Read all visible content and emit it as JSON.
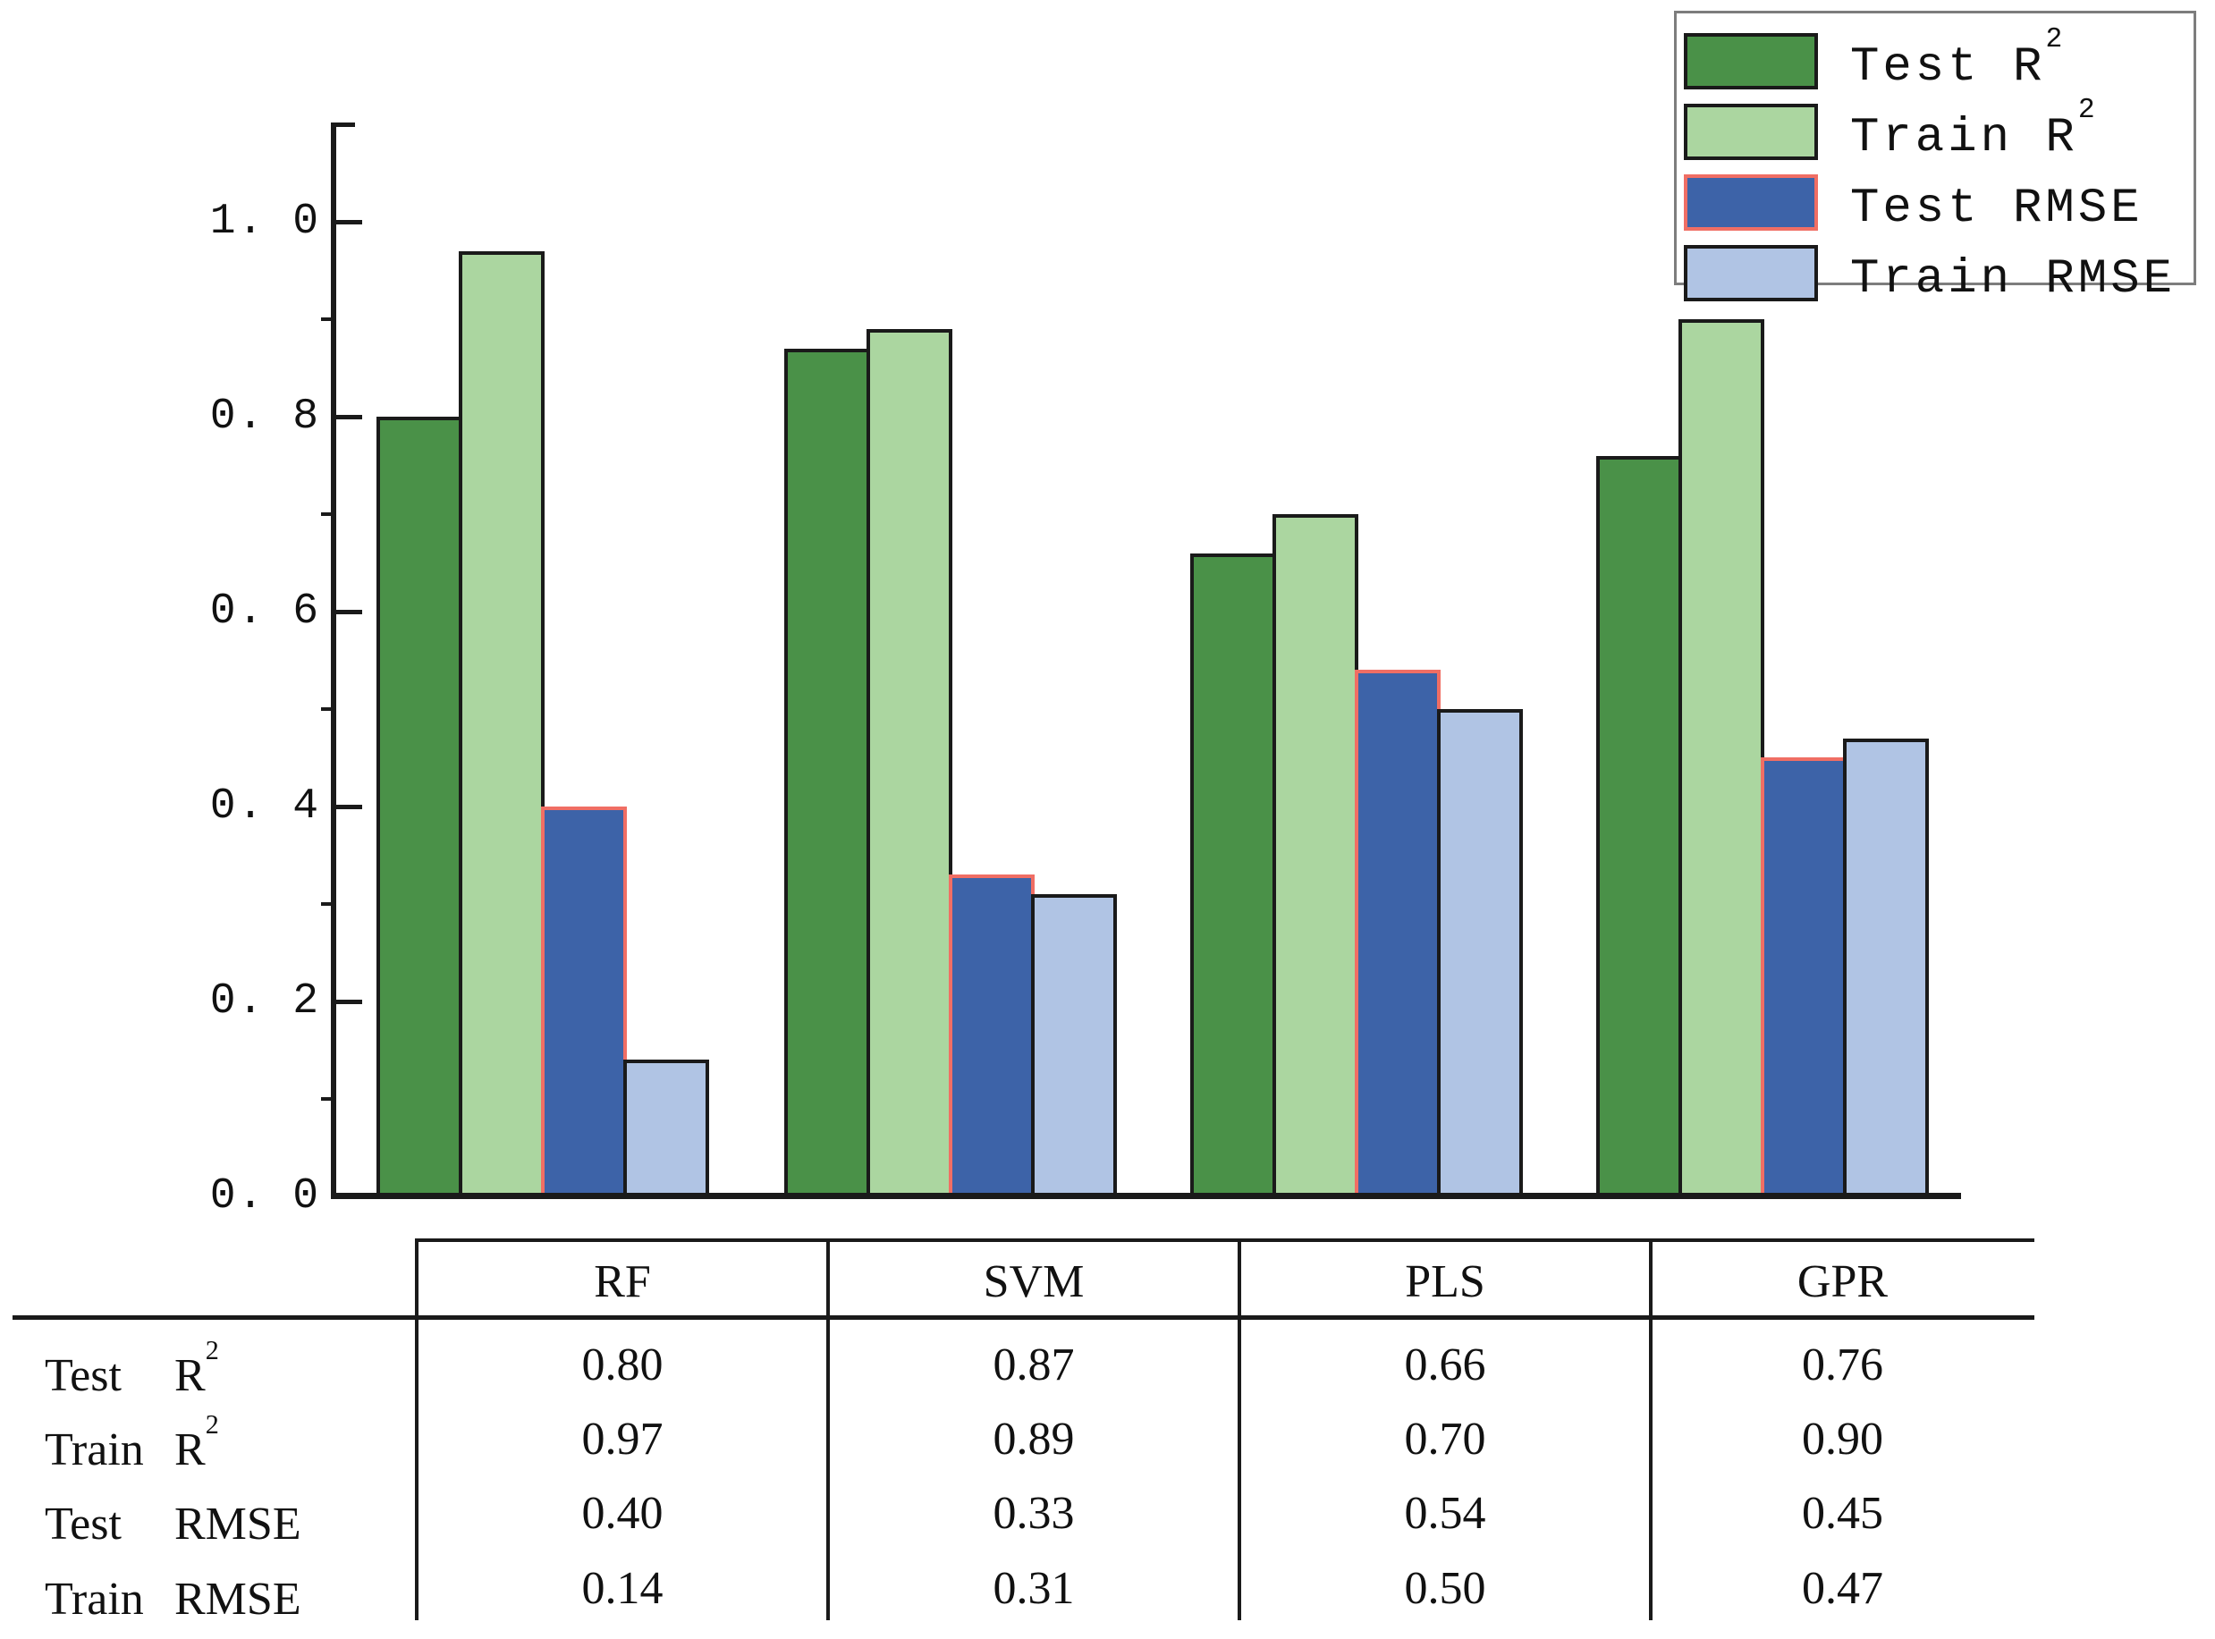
{
  "chart_data": {
    "type": "bar",
    "title": "",
    "xlabel": "",
    "ylabel": "",
    "categories": [
      "RF",
      "SVM",
      "PLS",
      "GPR"
    ],
    "series": [
      {
        "name": "Test R²",
        "values": [
          0.8,
          0.87,
          0.66,
          0.76
        ],
        "fill": "#4a9148",
        "edge": "#1a1a1a"
      },
      {
        "name": "Train R²",
        "values": [
          0.97,
          0.89,
          0.7,
          0.9
        ],
        "fill": "#abd6a0",
        "edge": "#1a1a1a"
      },
      {
        "name": "Test RMSE",
        "values": [
          0.4,
          0.33,
          0.54,
          0.45
        ],
        "fill": "#3d63a8",
        "edge": "#f06e64"
      },
      {
        "name": "Train RMSE",
        "values": [
          0.14,
          0.31,
          0.5,
          0.47
        ],
        "fill": "#b0c4e4",
        "edge": "#1a1a1a"
      }
    ],
    "ylim": [
      0,
      1.1
    ],
    "ytick_labels": [
      "0. 0",
      "0. 2",
      "0. 4",
      "0. 6",
      "0. 8",
      "1. 0"
    ],
    "ytick_values": [
      0.0,
      0.2,
      0.4,
      0.6,
      0.8,
      1.0
    ],
    "grid": false,
    "legend_position": "top-right",
    "pixels_per_unit": 1090
  },
  "legend": {
    "items": [
      {
        "text": "Test  R",
        "sup": "2"
      },
      {
        "text": "Train R",
        "sup": "2"
      },
      {
        "text": "Test  RMSE",
        "sup": ""
      },
      {
        "text": "Train RMSE",
        "sup": ""
      }
    ]
  },
  "table": {
    "columns": [
      "RF",
      "SVM",
      "PLS",
      "GPR"
    ],
    "rows": [
      {
        "word": "Test",
        "metric": "R",
        "sup": "2",
        "values": [
          "0.80",
          "0.87",
          "0.66",
          "0.76"
        ]
      },
      {
        "word": "Train",
        "metric": "R",
        "sup": "2",
        "values": [
          "0.97",
          "0.89",
          "0.70",
          "0.90"
        ]
      },
      {
        "word": "Test",
        "metric": "RMSE",
        "sup": "",
        "values": [
          "0.40",
          "0.33",
          "0.54",
          "0.45"
        ]
      },
      {
        "word": "Train",
        "metric": "RMSE",
        "sup": "",
        "values": [
          "0.14",
          "0.31",
          "0.50",
          "0.47"
        ]
      }
    ]
  }
}
